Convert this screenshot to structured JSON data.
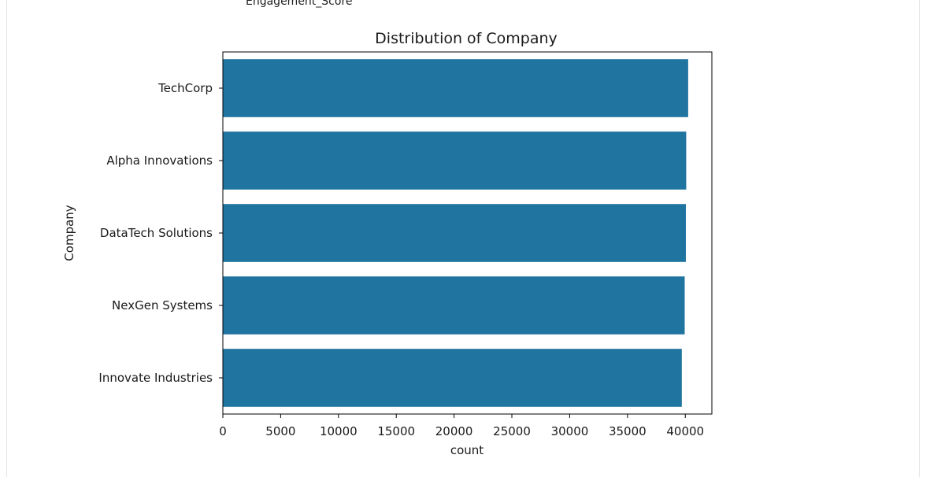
{
  "cell_output": {
    "stray_label": "Engagement_Score"
  },
  "colors": {
    "bar": "#2074a0",
    "axis": "#000000",
    "text": "#1a1a1a"
  },
  "chart_data": {
    "type": "bar",
    "orientation": "horizontal",
    "title": "Distribution of Company",
    "xlabel": "count",
    "ylabel": "Company",
    "categories": [
      "TechCorp",
      "Alpha Innovations",
      "DataTech Solutions",
      "NexGen Systems",
      "Innovate Industries"
    ],
    "values": [
      40250,
      40080,
      40050,
      39950,
      39700
    ],
    "xlim": [
      0,
      42300
    ],
    "xticks": [
      0,
      5000,
      10000,
      15000,
      20000,
      25000,
      30000,
      35000,
      40000
    ],
    "xtick_labels": [
      "0",
      "5000",
      "10000",
      "15000",
      "20000",
      "25000",
      "30000",
      "35000",
      "40000"
    ],
    "grid": false,
    "legend": "none"
  }
}
